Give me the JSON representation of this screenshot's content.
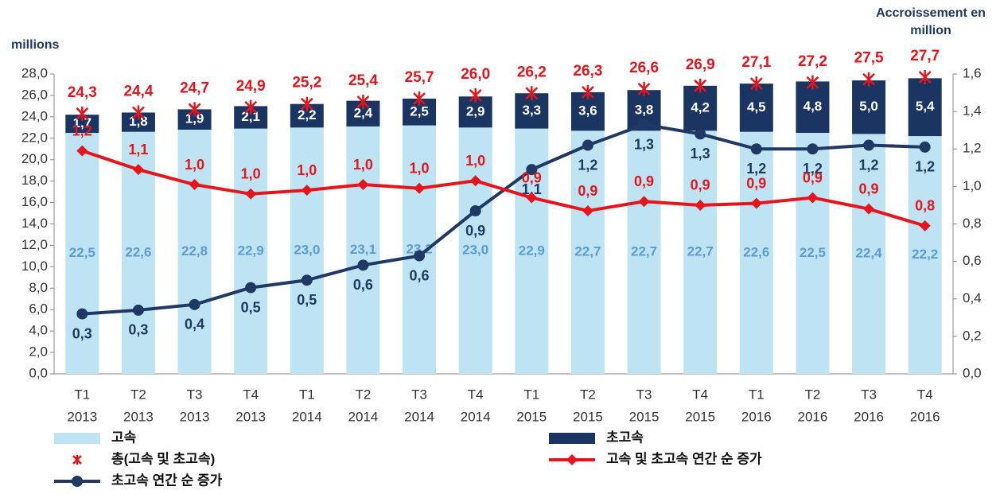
{
  "chart_data": {
    "type": "bar_line",
    "y_label": "millions",
    "y2_label": "Accroissement en million",
    "stacked": true,
    "grid": false,
    "categories": [
      [
        "T1",
        "2013"
      ],
      [
        "T2",
        "2013"
      ],
      [
        "T3",
        "2013"
      ],
      [
        "T4",
        "2013"
      ],
      [
        "T1",
        "2014"
      ],
      [
        "T2",
        "2014"
      ],
      [
        "T3",
        "2014"
      ],
      [
        "T4",
        "2014"
      ],
      [
        "T1",
        "2015"
      ],
      [
        "T2",
        "2015"
      ],
      [
        "T3",
        "2015"
      ],
      [
        "T4",
        "2015"
      ],
      [
        "T1",
        "2016"
      ],
      [
        "T2",
        "2016"
      ],
      [
        "T3",
        "2016"
      ],
      [
        "T4",
        "2016"
      ]
    ],
    "ylim": [
      0,
      28
    ],
    "yticks": [
      {
        "value": 0,
        "label": "0,0"
      },
      {
        "value": 2,
        "label": "2,0"
      },
      {
        "value": 4,
        "label": "4,0"
      },
      {
        "value": 6,
        "label": "6,0"
      },
      {
        "value": 8,
        "label": "8,0"
      },
      {
        "value": 10,
        "label": "10,0"
      },
      {
        "value": 12,
        "label": "12,0"
      },
      {
        "value": 14,
        "label": "14,0"
      },
      {
        "value": 16,
        "label": "16,0"
      },
      {
        "value": 18,
        "label": "18,0"
      },
      {
        "value": 20,
        "label": "20,0"
      },
      {
        "value": 22,
        "label": "22,0"
      },
      {
        "value": 24,
        "label": "24,0"
      },
      {
        "value": 26,
        "label": "26,0"
      },
      {
        "value": 28,
        "label": "28,0"
      }
    ],
    "y2lim": [
      0,
      1.6
    ],
    "y2ticks": [
      {
        "value": 0,
        "label": "0,0"
      },
      {
        "value": 0.2,
        "label": "0,2"
      },
      {
        "value": 0.4,
        "label": "0,4"
      },
      {
        "value": 0.6,
        "label": "0,6"
      },
      {
        "value": 0.8,
        "label": "0,8"
      },
      {
        "value": 1.0,
        "label": "1,0"
      },
      {
        "value": 1.2,
        "label": "1,2"
      },
      {
        "value": 1.4,
        "label": "1,4"
      },
      {
        "value": 1.6,
        "label": "1,6"
      }
    ],
    "series": [
      {
        "name": "고속",
        "kind": "bar",
        "color": "#bee4f3",
        "label_color": "#5b9bd5",
        "values": [
          22.5,
          22.6,
          22.8,
          22.9,
          23.0,
          23.1,
          23.2,
          23.0,
          22.9,
          22.7,
          22.7,
          22.7,
          22.6,
          22.5,
          22.4,
          22.2
        ],
        "value_labels": [
          "22,5",
          "22,6",
          "22,8",
          "22,9",
          "23,0",
          "23,1",
          "23,2",
          "23,0",
          "22,9",
          "22,7",
          "22,7",
          "22,7",
          "22,6",
          "22,5",
          "22,4",
          "22,2"
        ]
      },
      {
        "name": "초고속",
        "kind": "bar",
        "color": "#1b3562",
        "label_color": "#ffffff",
        "values": [
          1.7,
          1.8,
          1.9,
          2.1,
          2.2,
          2.4,
          2.5,
          2.9,
          3.3,
          3.6,
          3.8,
          4.2,
          4.5,
          4.8,
          5.0,
          5.4
        ],
        "value_labels": [
          "1,7",
          "1,8",
          "1,9",
          "2,1",
          "2,2",
          "2,4",
          "2,5",
          "2,9",
          "3,3",
          "3,6",
          "3,8",
          "4,2",
          "4,5",
          "4,8",
          "5,0",
          "5,4"
        ]
      },
      {
        "name": "총(고속 및 초고속)",
        "kind": "marker",
        "color": "#e8141b",
        "label_color": "#e8141b",
        "values": [
          24.3,
          24.4,
          24.7,
          24.9,
          25.2,
          25.4,
          25.7,
          26.0,
          26.2,
          26.3,
          26.6,
          26.9,
          27.1,
          27.2,
          27.5,
          27.7
        ],
        "value_labels": [
          "24,3",
          "24,4",
          "24,7",
          "24,9",
          "25,2",
          "25,4",
          "25,7",
          "26,0",
          "26,2",
          "26,3",
          "26,6",
          "26,9",
          "27,1",
          "27,2",
          "27,5",
          "27,7"
        ]
      },
      {
        "name": "초고속 연간 순 증가",
        "kind": "line",
        "marker": "circle",
        "axis": "y2",
        "color": "#1f3864",
        "label_color": "#1f3864",
        "label_side": "below",
        "values": [
          0.32,
          0.34,
          0.37,
          0.46,
          0.5,
          0.58,
          0.63,
          0.87,
          1.09,
          1.22,
          1.33,
          1.28,
          1.2,
          1.2,
          1.22,
          1.21
        ],
        "value_labels": [
          "0,3",
          "0,3",
          "0,4",
          "0,5",
          "0,5",
          "0,6",
          "0,6",
          "0,9",
          "1,1",
          "1,2",
          "1,3",
          "1,3",
          "1,2",
          "1,2",
          "1,2",
          "1,2"
        ]
      },
      {
        "name": "고속 및 초고속 연간 순 증가",
        "kind": "line",
        "marker": "diamond",
        "axis": "y2",
        "color": "#e8141b",
        "label_color": "#e8141b",
        "label_side": "above",
        "values": [
          1.19,
          1.09,
          1.01,
          0.96,
          0.98,
          1.01,
          0.99,
          1.03,
          0.94,
          0.87,
          0.92,
          0.9,
          0.91,
          0.94,
          0.88,
          0.79
        ],
        "value_labels": [
          "1,2",
          "1,1",
          "1,0",
          "1,0",
          "1,0",
          "1,0",
          "1,0",
          "1,0",
          "0,9",
          "0,9",
          "0,9",
          "0,9",
          "0,9",
          "0,9",
          "0,9",
          "0,8"
        ]
      }
    ]
  }
}
